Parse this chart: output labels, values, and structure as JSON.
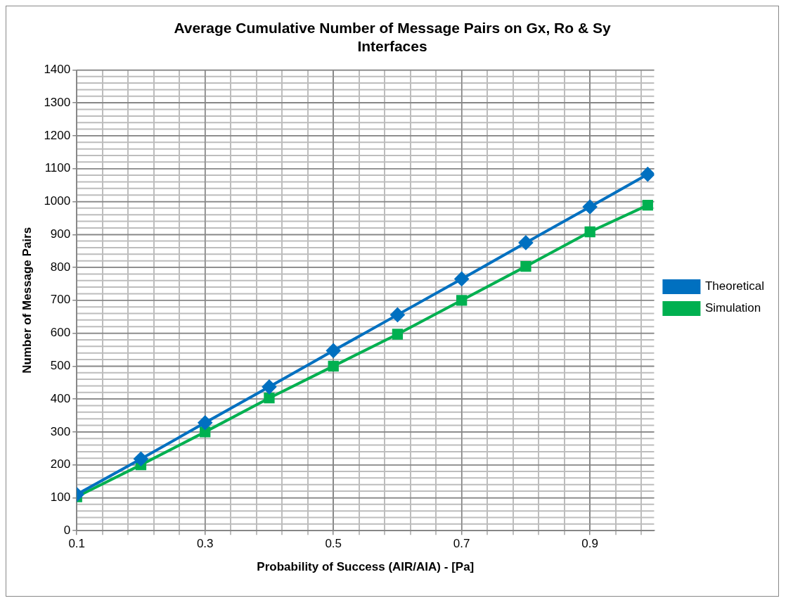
{
  "chart_data": {
    "type": "line",
    "title": "Average Cumulative Number of Message Pairs on Gx, Ro & Sy Interfaces",
    "xlabel": "Probability of Success (AIR/AIA) - [Pa]",
    "ylabel": "Number of Message Pairs",
    "x": [
      0.1,
      0.2,
      0.3,
      0.4,
      0.5,
      0.6,
      0.7,
      0.8,
      0.9,
      0.99
    ],
    "series": [
      {
        "name": "Theoretical",
        "color": "#0070c0",
        "marker": "diamond",
        "values": [
          110,
          218,
          328,
          437,
          547,
          656,
          765,
          875,
          984,
          1083
        ]
      },
      {
        "name": "Simulation",
        "color": "#00b050",
        "marker": "square",
        "values": [
          103,
          200,
          300,
          403,
          500,
          597,
          700,
          803,
          908,
          989
        ]
      }
    ],
    "xlim": [
      0.1,
      1.0
    ],
    "xticks": [
      0.1,
      {
        "value": 0.14,
        "label": null
      },
      {
        "value": 0.18,
        "label": null
      },
      {
        "value": 0.22,
        "label": null
      },
      {
        "value": 0.26,
        "label": null
      },
      0.3,
      {
        "value": 0.34,
        "label": null
      },
      {
        "value": 0.38,
        "label": null
      },
      {
        "value": 0.42,
        "label": null
      },
      {
        "value": 0.46,
        "label": null
      },
      0.5,
      {
        "value": 0.54,
        "label": null
      },
      {
        "value": 0.58,
        "label": null
      },
      {
        "value": 0.62,
        "label": null
      },
      {
        "value": 0.66,
        "label": null
      },
      0.7,
      {
        "value": 0.74,
        "label": null
      },
      {
        "value": 0.78,
        "label": null
      },
      {
        "value": 0.82,
        "label": null
      },
      {
        "value": 0.86,
        "label": null
      },
      0.9,
      {
        "value": 0.94,
        "label": null
      },
      {
        "value": 0.98,
        "label": null
      }
    ],
    "ylim": [
      0,
      1400
    ],
    "yticks": [
      0,
      100,
      200,
      300,
      400,
      500,
      600,
      700,
      800,
      900,
      1000,
      1100,
      1200,
      1300,
      1400
    ],
    "grid": true,
    "legend": "right",
    "line_style": "solid"
  }
}
